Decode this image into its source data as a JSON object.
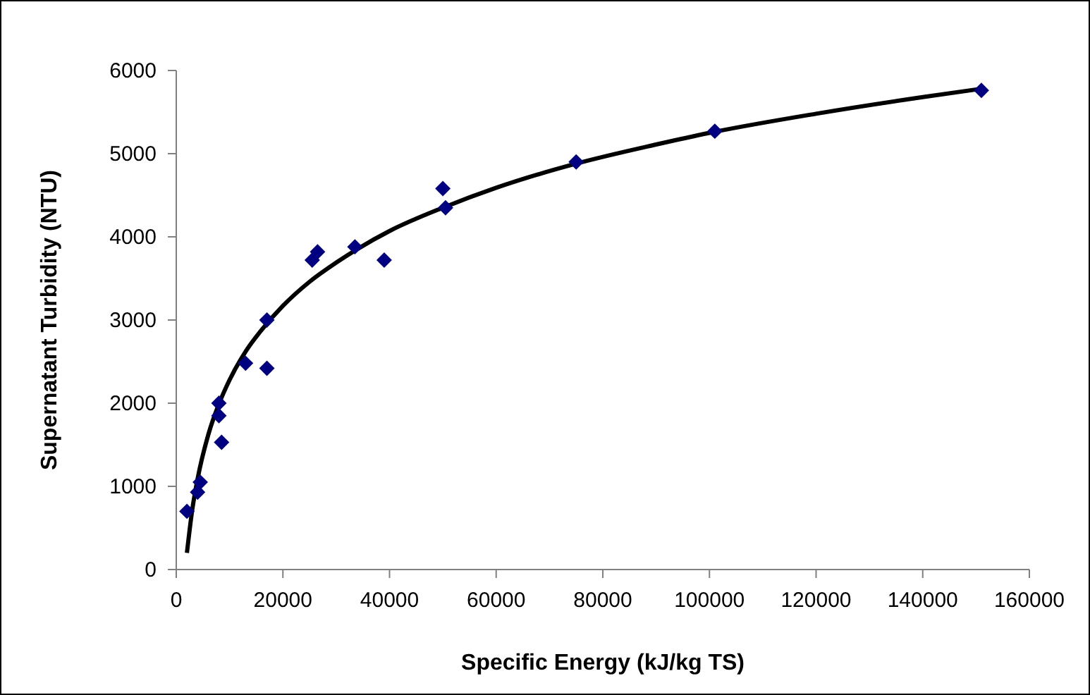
{
  "chart_data": {
    "type": "scatter",
    "xlabel": "Specific Energy (kJ/kg TS)",
    "ylabel": "Supernatant Turbidity (NTU)",
    "xlim": [
      0,
      160000
    ],
    "xticks": [
      0,
      20000,
      40000,
      60000,
      80000,
      100000,
      120000,
      140000,
      160000
    ],
    "ylim": [
      0,
      6000
    ],
    "yticks": [
      0,
      1000,
      2000,
      3000,
      4000,
      5000,
      6000
    ],
    "marker": "diamond",
    "series": [
      {
        "color": "#000080",
        "x": [
          2000,
          4000,
          4500,
          8000,
          8000,
          8500,
          13000,
          17000,
          17000,
          25500,
          26500,
          33500,
          39000,
          50000,
          50500,
          75000,
          101000,
          151000
        ],
        "values": [
          700,
          930,
          1050,
          2000,
          1850,
          1530,
          2480,
          3000,
          2420,
          3720,
          3820,
          3880,
          3720,
          4580,
          4350,
          4900,
          5270,
          5760
        ]
      },
      {
        "type": "line",
        "color": "#000000",
        "marker": "none",
        "x": [
          2000,
          3000,
          4000,
          6000,
          8000,
          10000,
          13000,
          16000,
          20000,
          25000,
          30000,
          40000,
          50000,
          60000,
          75000,
          90000,
          100000,
          120000,
          140000,
          151000
        ],
        "values": [
          200,
          720,
          1090,
          1620,
          1990,
          2280,
          2620,
          2880,
          3170,
          3460,
          3690,
          4070,
          4350,
          4590,
          4880,
          5110,
          5250,
          5480,
          5680,
          5780
        ]
      }
    ]
  }
}
